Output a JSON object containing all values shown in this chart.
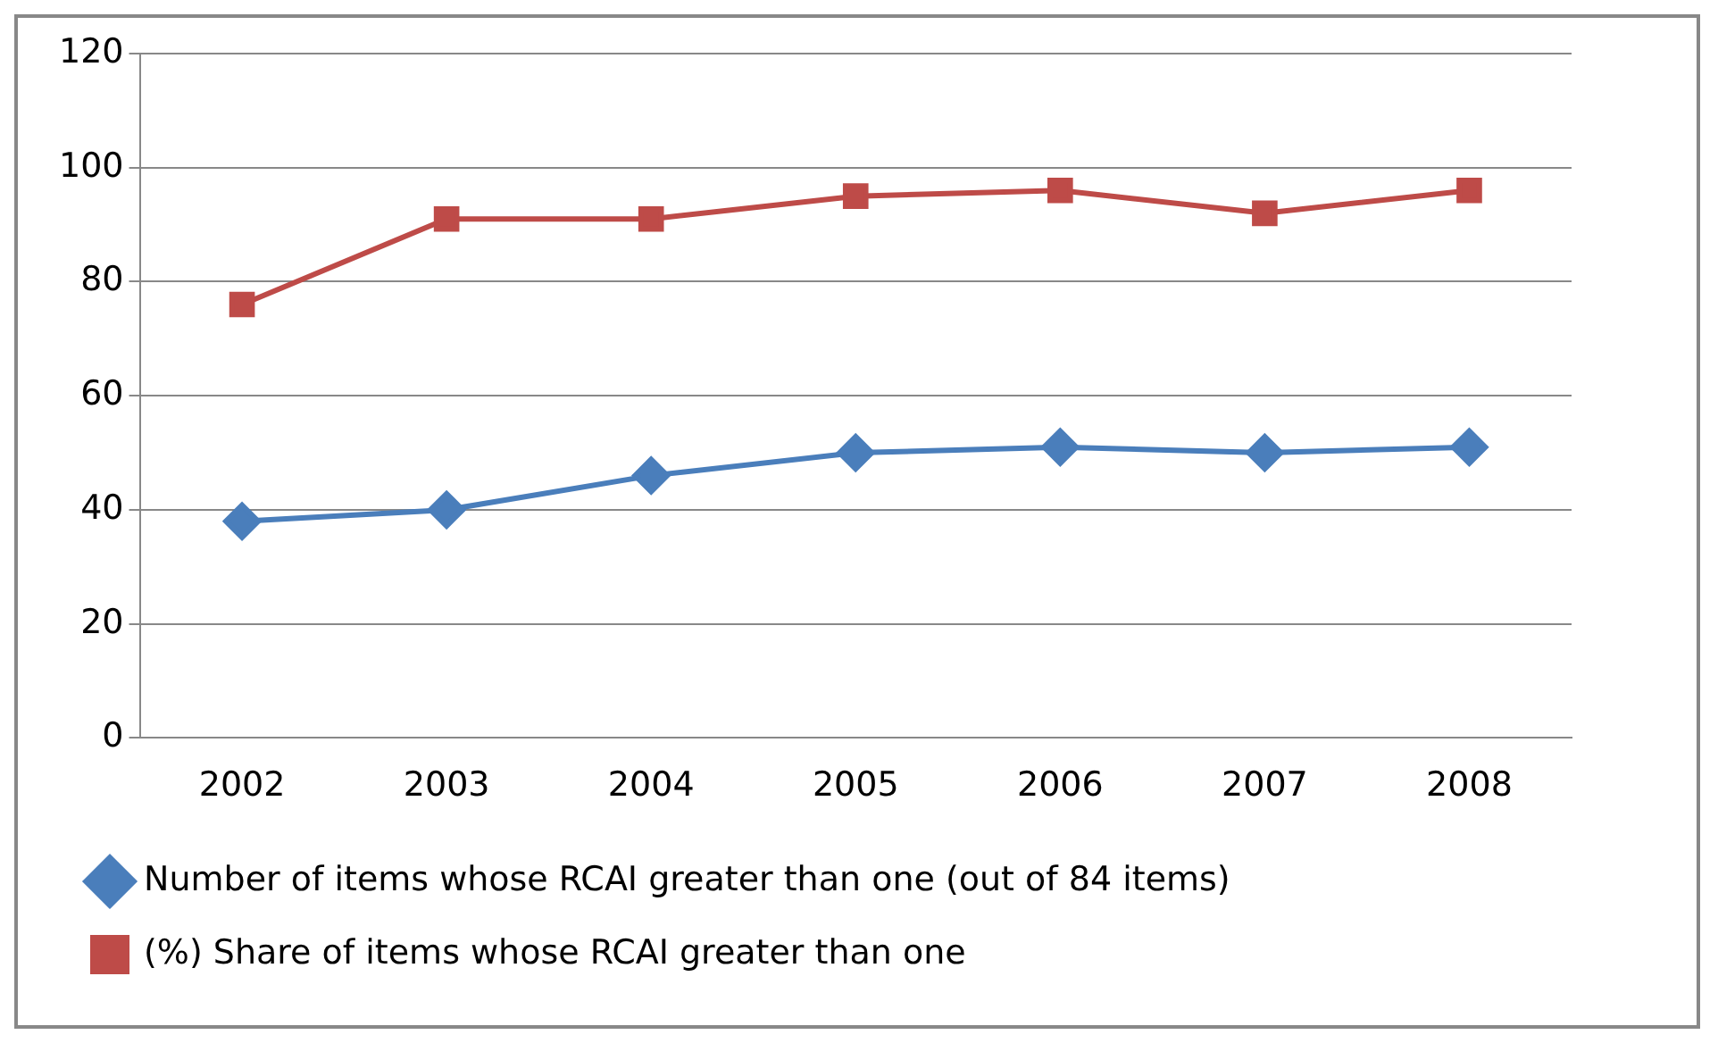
{
  "chart_data": {
    "type": "line",
    "categories": [
      "2002",
      "2003",
      "2004",
      "2005",
      "2006",
      "2007",
      "2008"
    ],
    "series": [
      {
        "name": "Number of items whose RCAI greater than one (out of 84 items)",
        "color": "#4a7ebb",
        "marker": "diamond",
        "values": [
          38,
          40,
          46,
          50,
          51,
          50,
          51
        ]
      },
      {
        "name": "(%) Share of items whose RCAI greater than one",
        "color": "#be4b48",
        "marker": "square",
        "values": [
          76,
          91,
          91,
          95,
          96,
          92,
          96
        ]
      }
    ],
    "ylim": [
      0,
      120
    ],
    "yticks": [
      0,
      20,
      40,
      60,
      80,
      100,
      120
    ],
    "grid": "y",
    "legend": "bottom",
    "line_style": "solid"
  }
}
